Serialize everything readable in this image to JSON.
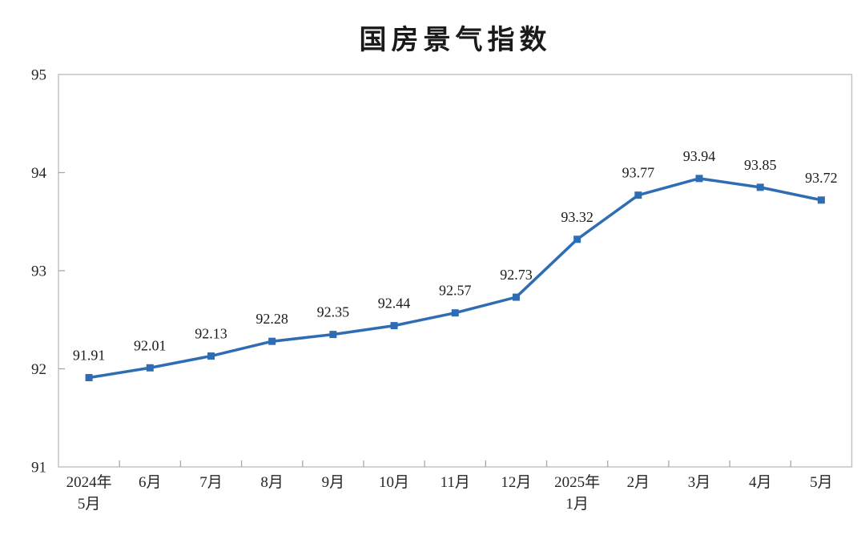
{
  "title": "国房景气指数",
  "colors": {
    "line": "#2e6db4",
    "marker": "#2e6db4",
    "plot_border": "#c3c3c3",
    "tick": "#a6a6a6",
    "data_label": "#1a1a1a",
    "axis_text": "#262626",
    "background": "#ffffff"
  },
  "chart_data": {
    "type": "line",
    "title": "国房景气指数",
    "categories": [
      "2024年\n5月",
      "6月",
      "7月",
      "8月",
      "9月",
      "10月",
      "11月",
      "12月",
      "2025年\n1月",
      "2月",
      "3月",
      "4月",
      "5月"
    ],
    "values": [
      91.91,
      92.01,
      92.13,
      92.28,
      92.35,
      92.44,
      92.57,
      92.73,
      93.32,
      93.77,
      93.94,
      93.85,
      93.72
    ],
    "xlabel": "",
    "ylabel": "",
    "ylim": [
      91,
      95
    ],
    "yticks": [
      91,
      92,
      93,
      94,
      95
    ],
    "grid": false,
    "legend_position": "none",
    "marker": "square",
    "data_labels": true
  }
}
